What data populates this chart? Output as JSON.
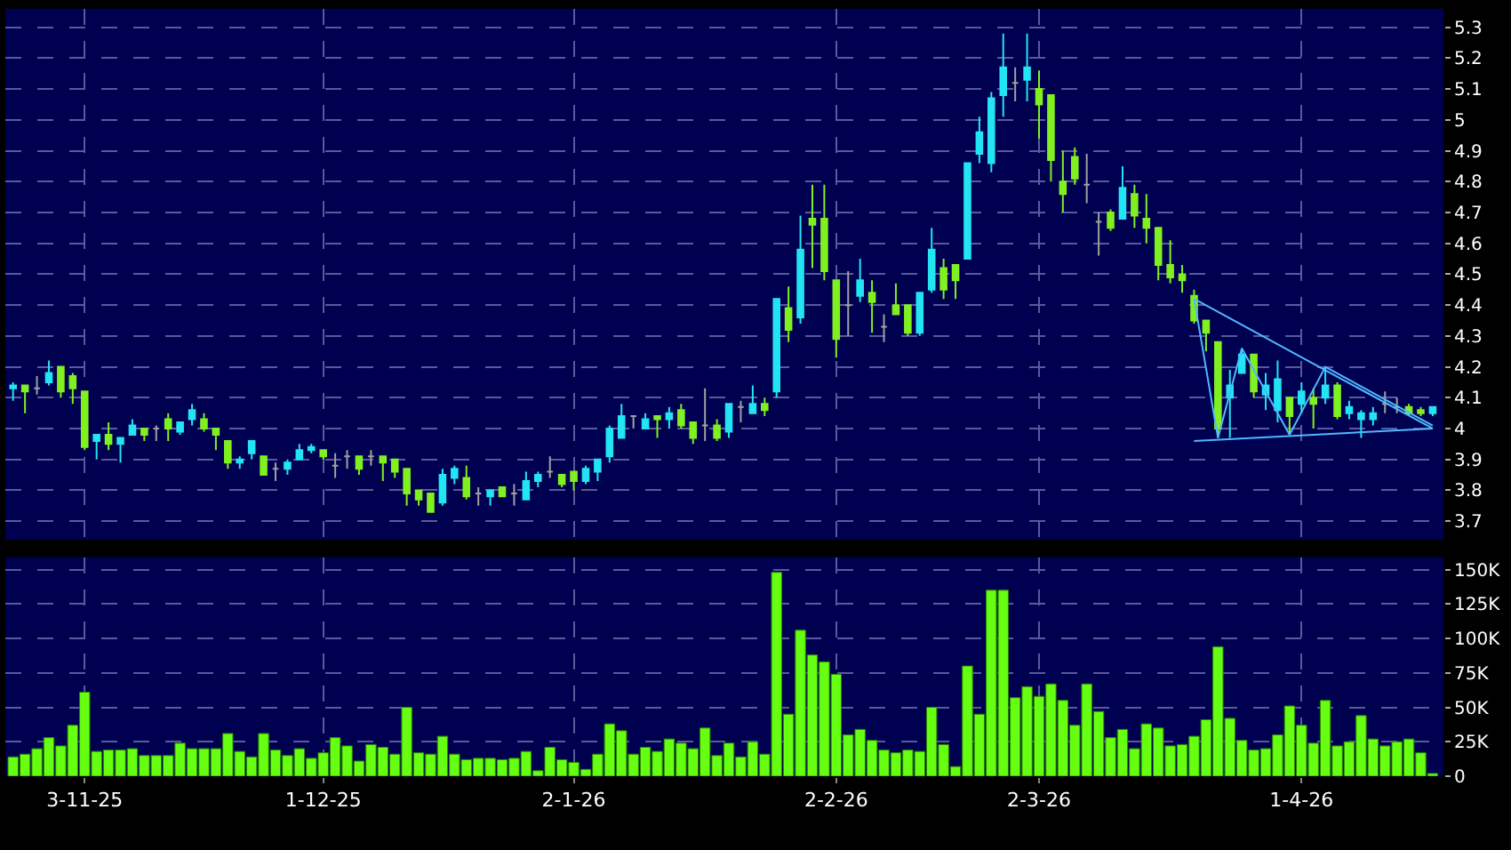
{
  "chart_data": [
    {
      "type": "candlestick",
      "categories": [
        null,
        null,
        null,
        null,
        null,
        null,
        null,
        null,
        null,
        null,
        null,
        null,
        null,
        null,
        null,
        null,
        null,
        null,
        null,
        null,
        null,
        null,
        null,
        null,
        null,
        null,
        null,
        null,
        null,
        null,
        null,
        null,
        null,
        null,
        null,
        null,
        null,
        null,
        null,
        null,
        null,
        null,
        null,
        null,
        null,
        null,
        null,
        null,
        null,
        null,
        null,
        null,
        null,
        null,
        null,
        null,
        null,
        null,
        null,
        null,
        null,
        null,
        null,
        null,
        null,
        null,
        null,
        null,
        null,
        null,
        null,
        null,
        null,
        null,
        null,
        null,
        null,
        null,
        null,
        null,
        null,
        null,
        null,
        null,
        null,
        null,
        null,
        null,
        null,
        null,
        null,
        null,
        null,
        null,
        null,
        null,
        null,
        null,
        null,
        null,
        null,
        null,
        null,
        null,
        null,
        null,
        null,
        null,
        null,
        null,
        null,
        null,
        null,
        null,
        null,
        null,
        null,
        null,
        null,
        null
      ],
      "ohlc": [
        [
          4.13,
          4.15,
          4.09,
          4.14
        ],
        [
          4.14,
          4.14,
          4.05,
          4.12
        ],
        [
          4.13,
          4.17,
          4.11,
          4.13
        ],
        [
          4.15,
          4.22,
          4.14,
          4.18
        ],
        [
          4.2,
          4.2,
          4.1,
          4.12
        ],
        [
          4.17,
          4.18,
          4.08,
          4.13
        ],
        [
          4.12,
          4.12,
          3.93,
          3.94
        ],
        [
          3.96,
          3.98,
          3.9,
          3.98
        ],
        [
          3.98,
          4.02,
          3.93,
          3.95
        ],
        [
          3.95,
          3.97,
          3.89,
          3.97
        ],
        [
          3.98,
          4.03,
          3.98,
          4.01
        ],
        [
          4.0,
          4.0,
          3.96,
          3.98
        ],
        [
          4.0,
          4.01,
          3.96,
          4.0
        ],
        [
          4.03,
          4.05,
          3.96,
          4.0
        ],
        [
          3.99,
          4.02,
          3.98,
          4.02
        ],
        [
          4.03,
          4.08,
          4.01,
          4.06
        ],
        [
          4.03,
          4.05,
          3.99,
          4.0
        ],
        [
          4.0,
          4.0,
          3.93,
          3.98
        ],
        [
          3.96,
          3.96,
          3.87,
          3.89
        ],
        [
          3.89,
          3.91,
          3.87,
          3.9
        ],
        [
          3.92,
          3.96,
          3.9,
          3.96
        ],
        [
          3.91,
          3.91,
          3.85,
          3.85
        ],
        [
          3.87,
          3.89,
          3.83,
          3.87
        ],
        [
          3.87,
          3.9,
          3.85,
          3.89
        ],
        [
          3.9,
          3.95,
          3.9,
          3.93
        ],
        [
          3.93,
          3.95,
          3.92,
          3.94
        ],
        [
          3.93,
          3.93,
          3.9,
          3.91
        ],
        [
          3.88,
          3.92,
          3.84,
          3.88
        ],
        [
          3.91,
          3.93,
          3.87,
          3.91
        ],
        [
          3.91,
          3.91,
          3.85,
          3.87
        ],
        [
          3.91,
          3.93,
          3.88,
          3.91
        ],
        [
          3.91,
          3.91,
          3.83,
          3.89
        ],
        [
          3.9,
          3.9,
          3.84,
          3.86
        ],
        [
          3.87,
          3.87,
          3.75,
          3.79
        ],
        [
          3.8,
          3.8,
          3.75,
          3.77
        ],
        [
          3.79,
          3.79,
          3.73,
          3.73
        ],
        [
          3.76,
          3.87,
          3.75,
          3.85
        ],
        [
          3.84,
          3.88,
          3.82,
          3.87
        ],
        [
          3.84,
          3.88,
          3.77,
          3.78
        ],
        [
          3.79,
          3.81,
          3.75,
          3.79
        ],
        [
          3.78,
          3.8,
          3.75,
          3.8
        ],
        [
          3.81,
          3.81,
          3.78,
          3.78
        ],
        [
          3.79,
          3.82,
          3.75,
          3.79
        ],
        [
          3.77,
          3.86,
          3.77,
          3.83
        ],
        [
          3.83,
          3.86,
          3.81,
          3.85
        ],
        [
          3.86,
          3.91,
          3.84,
          3.86
        ],
        [
          3.85,
          3.85,
          3.81,
          3.82
        ],
        [
          3.86,
          3.86,
          3.8,
          3.83
        ],
        [
          3.83,
          3.88,
          3.82,
          3.87
        ],
        [
          3.86,
          3.9,
          3.83,
          3.9
        ],
        [
          3.91,
          4.01,
          3.89,
          4.0
        ],
        [
          3.97,
          4.08,
          3.97,
          4.04
        ],
        [
          4.04,
          4.04,
          4.0,
          4.04
        ],
        [
          4.0,
          4.05,
          4.0,
          4.03
        ],
        [
          4.04,
          4.04,
          3.97,
          4.03
        ],
        [
          4.03,
          4.07,
          4.0,
          4.05
        ],
        [
          4.06,
          4.08,
          4.0,
          4.01
        ],
        [
          4.02,
          4.02,
          3.95,
          3.97
        ],
        [
          4.01,
          4.13,
          3.96,
          4.01
        ],
        [
          4.01,
          4.03,
          3.96,
          3.97
        ],
        [
          3.99,
          4.08,
          3.97,
          4.08
        ],
        [
          4.07,
          4.09,
          4.02,
          4.07
        ],
        [
          4.05,
          4.14,
          4.05,
          4.08
        ],
        [
          4.08,
          4.1,
          4.04,
          4.06
        ],
        [
          4.12,
          4.42,
          4.1,
          4.42
        ],
        [
          4.39,
          4.46,
          4.28,
          4.32
        ],
        [
          4.36,
          4.69,
          4.34,
          4.58
        ],
        [
          4.68,
          4.79,
          4.52,
          4.66
        ],
        [
          4.68,
          4.79,
          4.48,
          4.51
        ],
        [
          4.48,
          4.48,
          4.23,
          4.29
        ],
        [
          4.4,
          4.51,
          4.3,
          4.4
        ],
        [
          4.43,
          4.55,
          4.41,
          4.48
        ],
        [
          4.44,
          4.48,
          4.31,
          4.41
        ],
        [
          4.33,
          4.37,
          4.28,
          4.33
        ],
        [
          4.4,
          4.47,
          4.37,
          4.37
        ],
        [
          4.4,
          4.4,
          4.3,
          4.31
        ],
        [
          4.31,
          4.44,
          4.3,
          4.44
        ],
        [
          4.45,
          4.65,
          4.44,
          4.58
        ],
        [
          4.52,
          4.55,
          4.42,
          4.45
        ],
        [
          4.53,
          4.53,
          4.42,
          4.48
        ],
        [
          4.55,
          4.86,
          4.55,
          4.86
        ],
        [
          4.89,
          5.01,
          4.86,
          4.96
        ],
        [
          4.86,
          5.09,
          4.83,
          5.07
        ],
        [
          5.08,
          5.28,
          5.01,
          5.17
        ],
        [
          5.12,
          5.17,
          5.06,
          5.12
        ],
        [
          5.13,
          5.28,
          5.06,
          5.17
        ],
        [
          5.1,
          5.16,
          4.94,
          5.05
        ],
        [
          5.08,
          5.08,
          4.8,
          4.87
        ],
        [
          4.8,
          4.9,
          4.7,
          4.76
        ],
        [
          4.88,
          4.91,
          4.79,
          4.81
        ],
        [
          4.79,
          4.89,
          4.73,
          4.79
        ],
        [
          4.67,
          4.7,
          4.56,
          4.67
        ],
        [
          4.7,
          4.71,
          4.64,
          4.65
        ],
        [
          4.68,
          4.85,
          4.68,
          4.78
        ],
        [
          4.76,
          4.79,
          4.65,
          4.69
        ],
        [
          4.68,
          4.76,
          4.6,
          4.65
        ],
        [
          4.65,
          4.65,
          4.48,
          4.53
        ],
        [
          4.53,
          4.61,
          4.47,
          4.49
        ],
        [
          4.5,
          4.53,
          4.44,
          4.48
        ],
        [
          4.43,
          4.45,
          4.34,
          4.35
        ],
        [
          4.35,
          4.35,
          4.25,
          4.31
        ],
        [
          4.28,
          4.28,
          3.97,
          4.0
        ],
        [
          4.1,
          4.19,
          3.97,
          4.14
        ],
        [
          4.18,
          4.26,
          4.18,
          4.24
        ],
        [
          4.24,
          4.24,
          4.1,
          4.12
        ],
        [
          4.11,
          4.18,
          4.06,
          4.14
        ],
        [
          4.06,
          4.22,
          4.02,
          4.16
        ],
        [
          4.1,
          4.1,
          3.98,
          4.04
        ],
        [
          4.08,
          4.15,
          4.05,
          4.12
        ],
        [
          4.1,
          4.13,
          4.0,
          4.08
        ],
        [
          4.1,
          4.2,
          4.08,
          4.14
        ],
        [
          4.14,
          4.15,
          4.03,
          4.04
        ],
        [
          4.05,
          4.09,
          4.03,
          4.07
        ],
        [
          4.03,
          4.06,
          3.97,
          4.05
        ],
        [
          4.03,
          4.07,
          4.01,
          4.05
        ],
        [
          4.08,
          4.12,
          4.05,
          4.08
        ],
        [
          4.07,
          4.1,
          4.05,
          4.07
        ],
        [
          4.07,
          4.08,
          4.04,
          4.05
        ],
        [
          4.06,
          4.07,
          4.04,
          4.05
        ],
        [
          4.05,
          4.07,
          4.04,
          4.07
        ]
      ],
      "colors": [
        "#22e4f2",
        "#80f020",
        "#a0a0a0",
        "#22e4f2",
        "#80f020",
        "#80f020",
        "#80f020",
        "#22e4f2",
        "#80f020",
        "#22e4f2",
        "#22e4f2",
        "#80f020",
        "#a0a0a0",
        "#80f020",
        "#22e4f2",
        "#22e4f2",
        "#80f020",
        "#80f020",
        "#80f020",
        "#22e4f2",
        "#22e4f2",
        "#80f020",
        "#a0a0a0",
        "#22e4f2",
        "#22e4f2",
        "#22e4f2",
        "#80f020",
        "#a0a0a0",
        "#a0a0a0",
        "#80f020",
        "#a0a0a0",
        "#80f020",
        "#80f020",
        "#80f020",
        "#80f020",
        "#80f020",
        "#22e4f2",
        "#22e4f2",
        "#80f020",
        "#a0a0a0",
        "#22e4f2",
        "#80f020",
        "#a0a0a0",
        "#22e4f2",
        "#22e4f2",
        "#a0a0a0",
        "#80f020",
        "#80f020",
        "#22e4f2",
        "#22e4f2",
        "#22e4f2",
        "#22e4f2",
        "#a0a0a0",
        "#22e4f2",
        "#80f020",
        "#22e4f2",
        "#80f020",
        "#80f020",
        "#a0a0a0",
        "#80f020",
        "#22e4f2",
        "#a0a0a0",
        "#22e4f2",
        "#80f020",
        "#22e4f2",
        "#80f020",
        "#22e4f2",
        "#80f020",
        "#80f020",
        "#80f020",
        "#a0a0a0",
        "#22e4f2",
        "#80f020",
        "#a0a0a0",
        "#80f020",
        "#80f020",
        "#22e4f2",
        "#22e4f2",
        "#80f020",
        "#80f020",
        "#22e4f2",
        "#22e4f2",
        "#22e4f2",
        "#22e4f2",
        "#a0a0a0",
        "#22e4f2",
        "#80f020",
        "#80f020",
        "#80f020",
        "#80f020",
        "#a0a0a0",
        "#a0a0a0",
        "#80f020",
        "#22e4f2",
        "#80f020",
        "#80f020",
        "#80f020",
        "#80f020",
        "#80f020",
        "#80f020",
        "#80f020",
        "#80f020",
        "#22e4f2",
        "#22e4f2",
        "#80f020",
        "#22e4f2",
        "#22e4f2",
        "#80f020",
        "#22e4f2",
        "#80f020",
        "#22e4f2",
        "#80f020",
        "#22e4f2",
        "#22e4f2",
        "#22e4f2",
        "#a0a0a0",
        "#a0a0a0",
        "#80f020",
        "#80f020",
        "#22e4f2"
      ],
      "series": [
        {
          "type": "line",
          "color": "#4fb8ff",
          "values": [
            null,
            null,
            null,
            null,
            null,
            null,
            null,
            null,
            null,
            null,
            null,
            null,
            null,
            null,
            null,
            null,
            null,
            null,
            null,
            null,
            null,
            null,
            null,
            null,
            null,
            null,
            null,
            null,
            null,
            null,
            null,
            null,
            null,
            null,
            null,
            null,
            null,
            null,
            null,
            null,
            null,
            null,
            null,
            null,
            null,
            null,
            null,
            null,
            null,
            null,
            null,
            null,
            null,
            null,
            null,
            null,
            null,
            null,
            null,
            null,
            null,
            null,
            null,
            null,
            null,
            null,
            null,
            null,
            null,
            null,
            null,
            null,
            null,
            null,
            null,
            null,
            null,
            null,
            null,
            null,
            null,
            null,
            null,
            null,
            null,
            null,
            null,
            null,
            null,
            null,
            null,
            null,
            null,
            null,
            null,
            null,
            null,
            null,
            null,
            4.42,
            null,
            3.97,
            null,
            4.26,
            null,
            null,
            null,
            3.98,
            null,
            null,
            4.2,
            null,
            null,
            null,
            null,
            null,
            null,
            null,
            null,
            4.01
          ]
        },
        {
          "type": "line",
          "color": "#4fb8ff",
          "values": [
            null,
            null,
            null,
            null,
            null,
            null,
            null,
            null,
            null,
            null,
            null,
            null,
            null,
            null,
            null,
            null,
            null,
            null,
            null,
            null,
            null,
            null,
            null,
            null,
            null,
            null,
            null,
            null,
            null,
            null,
            null,
            null,
            null,
            null,
            null,
            null,
            null,
            null,
            null,
            null,
            null,
            null,
            null,
            null,
            null,
            null,
            null,
            null,
            null,
            null,
            null,
            null,
            null,
            null,
            null,
            null,
            null,
            null,
            null,
            null,
            null,
            null,
            null,
            null,
            null,
            null,
            null,
            null,
            null,
            null,
            null,
            null,
            null,
            null,
            null,
            null,
            null,
            null,
            null,
            null,
            null,
            null,
            null,
            null,
            null,
            null,
            null,
            null,
            null,
            null,
            null,
            null,
            null,
            null,
            null,
            null,
            null,
            null,
            null,
            4.42,
            null,
            null,
            null,
            null,
            null,
            null,
            null,
            null,
            null,
            null,
            null,
            null,
            null,
            null,
            null,
            null,
            null,
            null,
            null,
            4.0
          ]
        },
        {
          "type": "line",
          "color": "#4fb8ff",
          "values": [
            null,
            null,
            null,
            null,
            null,
            null,
            null,
            null,
            null,
            null,
            null,
            null,
            null,
            null,
            null,
            null,
            null,
            null,
            null,
            null,
            null,
            null,
            null,
            null,
            null,
            null,
            null,
            null,
            null,
            null,
            null,
            null,
            null,
            null,
            null,
            null,
            null,
            null,
            null,
            null,
            null,
            null,
            null,
            null,
            null,
            null,
            null,
            null,
            null,
            null,
            null,
            null,
            null,
            null,
            null,
            null,
            null,
            null,
            null,
            null,
            null,
            null,
            null,
            null,
            null,
            null,
            null,
            null,
            null,
            null,
            null,
            null,
            null,
            null,
            null,
            null,
            null,
            null,
            null,
            null,
            null,
            null,
            null,
            null,
            null,
            null,
            null,
            null,
            null,
            null,
            null,
            null,
            null,
            null,
            null,
            null,
            null,
            null,
            null,
            3.96,
            null,
            null,
            null,
            null,
            null,
            null,
            null,
            null,
            null,
            null,
            null,
            null,
            null,
            null,
            null,
            null,
            null,
            null,
            null,
            4.0
          ]
        }
      ],
      "ylim": [
        3.64,
        5.36
      ],
      "yticks": [
        3.7,
        3.8,
        3.9,
        4,
        4.1,
        4.2,
        4.3,
        4.4,
        4.5,
        4.6,
        4.7,
        4.8,
        4.9,
        5,
        5.1,
        5.2,
        5.3
      ],
      "grid": true,
      "tick_labels": "y"
    },
    {
      "type": "bar",
      "categories": [
        null,
        null,
        null,
        null,
        null,
        null,
        "3-11-25",
        null,
        null,
        null,
        null,
        null,
        null,
        null,
        null,
        null,
        null,
        null,
        null,
        null,
        null,
        null,
        null,
        null,
        null,
        null,
        "1-12-25",
        null,
        null,
        null,
        null,
        null,
        null,
        null,
        null,
        null,
        null,
        null,
        null,
        null,
        null,
        null,
        null,
        null,
        null,
        null,
        null,
        "2-1-26",
        null,
        null,
        null,
        null,
        null,
        null,
        null,
        null,
        null,
        null,
        null,
        null,
        null,
        null,
        null,
        null,
        null,
        null,
        null,
        null,
        null,
        "2-2-26",
        null,
        null,
        null,
        null,
        null,
        null,
        null,
        null,
        null,
        null,
        null,
        null,
        null,
        null,
        null,
        null,
        "2-3-26",
        null,
        null,
        null,
        null,
        null,
        null,
        null,
        null,
        null,
        null,
        null,
        null,
        null,
        null,
        null,
        null,
        null,
        null,
        null,
        null,
        null,
        "1-4-26",
        null,
        null,
        null,
        null,
        null,
        null,
        null,
        null,
        null,
        null,
        null
      ],
      "values": [
        14000,
        16000,
        20000,
        28000,
        22000,
        37000,
        61000,
        18000,
        19000,
        19000,
        20000,
        15000,
        15000,
        15000,
        24000,
        20000,
        20000,
        20000,
        31000,
        18000,
        14000,
        31000,
        19000,
        15000,
        20000,
        13000,
        17000,
        28000,
        22000,
        11000,
        23000,
        21000,
        16000,
        50000,
        17000,
        16000,
        29000,
        16000,
        12000,
        13000,
        13000,
        12000,
        13000,
        18000,
        4000,
        21000,
        12000,
        10000,
        5000,
        16000,
        38000,
        33000,
        16000,
        21000,
        18000,
        27000,
        24000,
        20000,
        35000,
        15000,
        24000,
        14000,
        25000,
        16000,
        148000,
        45000,
        106000,
        88000,
        83000,
        74000,
        30000,
        34000,
        26000,
        19000,
        17000,
        19000,
        18000,
        50000,
        23000,
        7000,
        80000,
        45000,
        135000,
        135000,
        57000,
        65000,
        58000,
        67000,
        55000,
        37000,
        67000,
        47000,
        28000,
        34000,
        20000,
        38000,
        35000,
        22000,
        23000,
        29000,
        41000,
        94000,
        42000,
        26000,
        19000,
        20000,
        30000,
        51000,
        37000,
        24000,
        55000,
        22000,
        25000,
        44000,
        27000,
        22000,
        25000,
        27000,
        17000,
        2000
      ],
      "color": "#66ff11",
      "ylim": [
        0,
        159000
      ],
      "yticks": [
        0,
        {
          "value": 25000,
          "label": "25K"
        },
        {
          "value": 50000,
          "label": "50K"
        },
        {
          "value": 75000,
          "label": "75K"
        },
        {
          "value": 100000,
          "label": "100K"
        },
        {
          "value": 125000,
          "label": "125K"
        },
        {
          "value": 150000,
          "label": "150K"
        }
      ],
      "grid": true
    }
  ]
}
